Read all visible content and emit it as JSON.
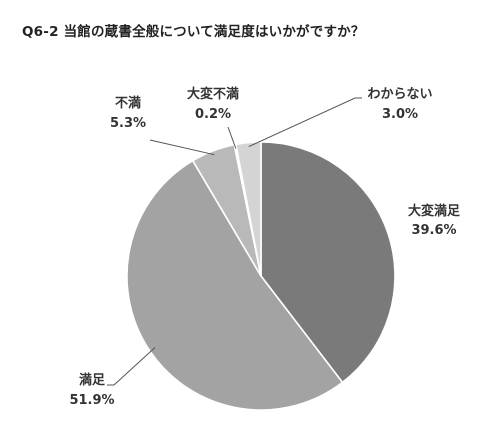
{
  "chart_data": {
    "type": "pie",
    "title": "Q6-2 当館の蔵書全般について満足度はいかがですか？",
    "slices": [
      {
        "label": "大変満足",
        "value": 39.6,
        "value_label": "39.6%",
        "color": "#7a7a7a"
      },
      {
        "label": "満足",
        "value": 51.9,
        "value_label": "51.9%",
        "color": "#a3a3a3"
      },
      {
        "label": "不満",
        "value": 5.3,
        "value_label": "5.3%",
        "color": "#b9b9b9"
      },
      {
        "label": "大変不満",
        "value": 0.2,
        "value_label": "0.2%",
        "color": "#8c8c8c"
      },
      {
        "label": "わからない",
        "value": 3.0,
        "value_label": "3.0%",
        "color": "#d4d4d4"
      }
    ],
    "start_position": "top",
    "direction": "clockwise",
    "legend": "none"
  }
}
